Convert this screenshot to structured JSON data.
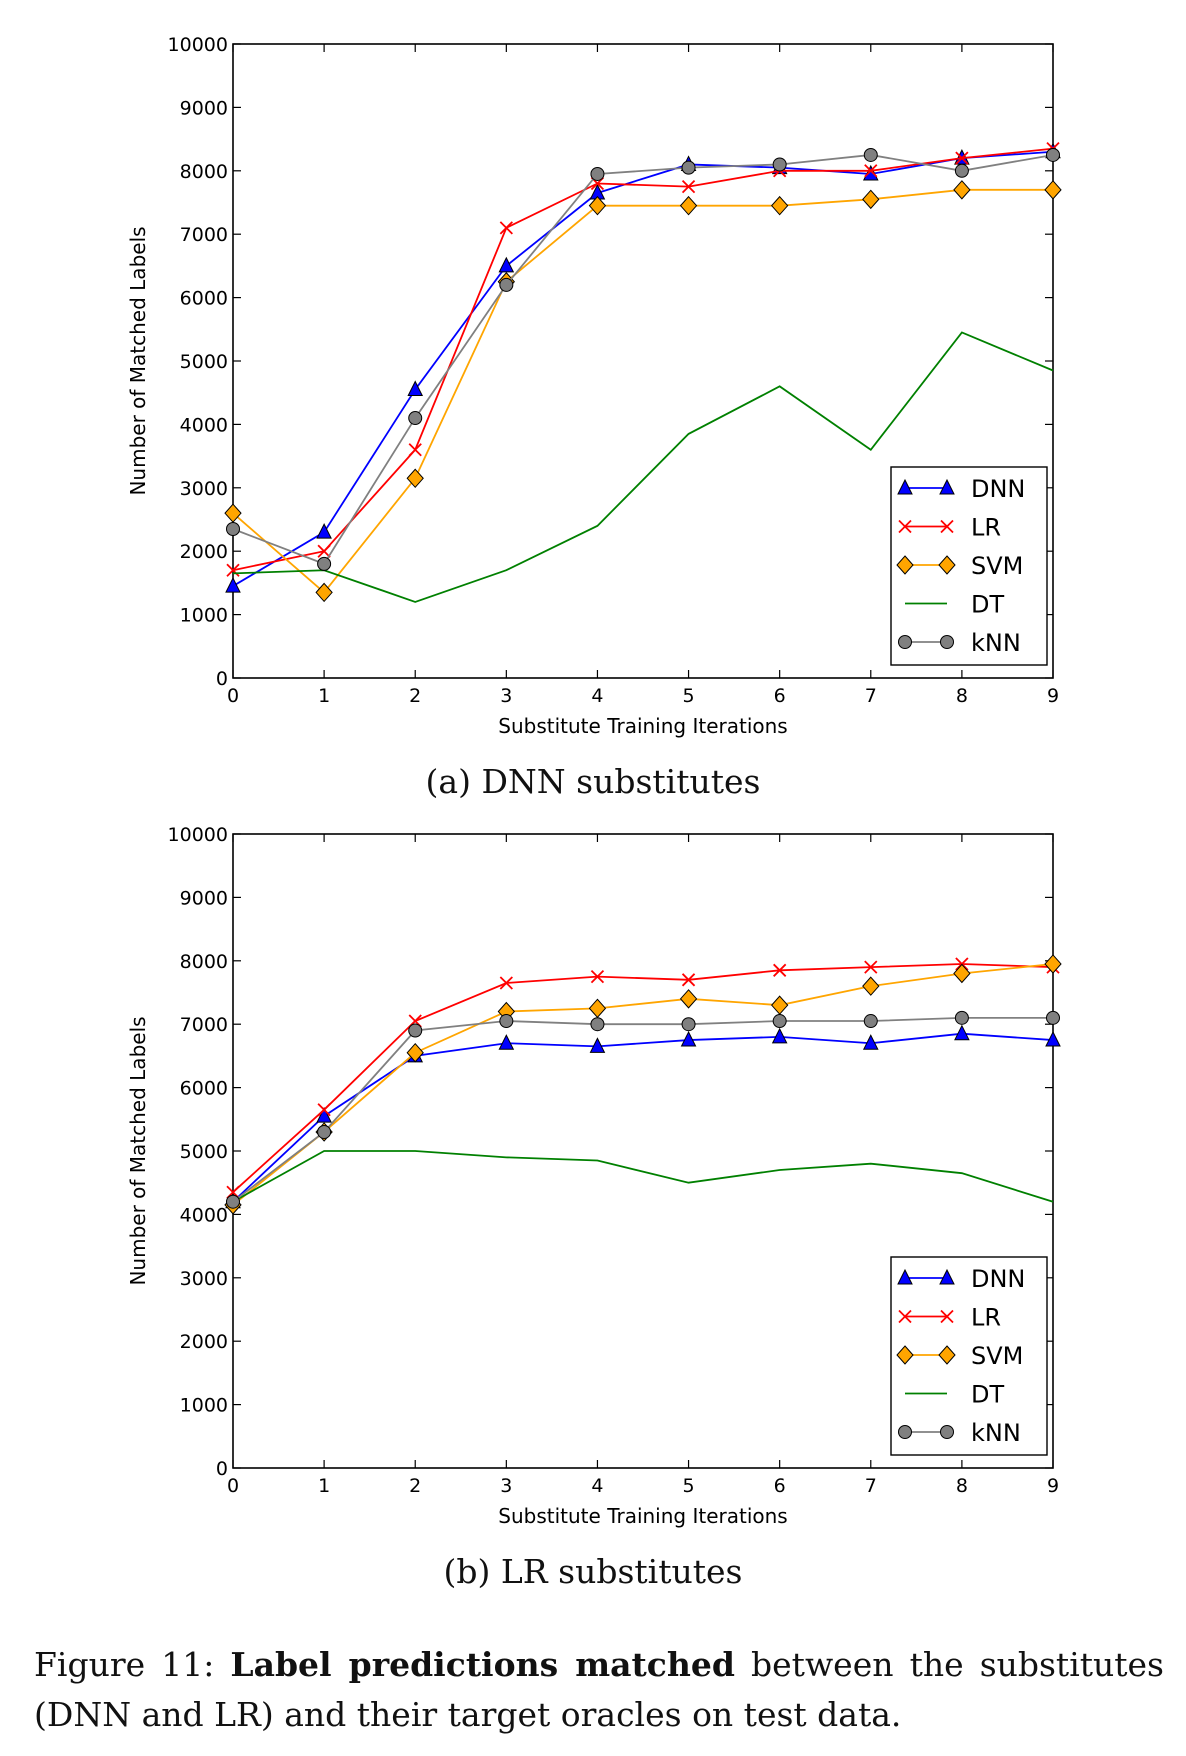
{
  "charts": [
    {
      "caption": "(a) DNN substitutes",
      "chart_data": {
        "type": "line",
        "xlabel": "Substitute Training Iterations",
        "ylabel": "Number of Matched Labels",
        "xlim": [
          0,
          9
        ],
        "ylim": [
          0,
          10000
        ],
        "x_ticks": [
          "0",
          "1",
          "2",
          "3",
          "4",
          "5",
          "6",
          "7",
          "8",
          "9"
        ],
        "y_ticks": [
          "0",
          "1000",
          "2000",
          "3000",
          "4000",
          "5000",
          "6000",
          "7000",
          "8000",
          "9000",
          "10000"
        ],
        "grid": false,
        "legend_position": "lower-right",
        "x": [
          0,
          1,
          2,
          3,
          4,
          5,
          6,
          7,
          8,
          9
        ],
        "series": [
          {
            "name": "DNN",
            "color": "#0000ff",
            "marker": "triangle",
            "values": [
              1450,
              2300,
              4550,
              6500,
              7650,
              8100,
              8050,
              7950,
              8200,
              8300
            ]
          },
          {
            "name": "LR",
            "color": "#ff0000",
            "marker": "x",
            "values": [
              1700,
              2000,
              3600,
              7100,
              7800,
              7750,
              8000,
              8000,
              8200,
              8350
            ]
          },
          {
            "name": "SVM",
            "color": "#ffa500",
            "marker": "diamond",
            "values": [
              2600,
              1350,
              3150,
              6250,
              7450,
              7450,
              7450,
              7550,
              7700,
              7700
            ]
          },
          {
            "name": "DT",
            "color": "#008000",
            "marker": "none",
            "values": [
              1650,
              1700,
              1200,
              1700,
              2400,
              3850,
              4600,
              3600,
              5450,
              4850
            ]
          },
          {
            "name": "kNN",
            "color": "#808080",
            "marker": "circle",
            "values": [
              2350,
              1800,
              4100,
              6200,
              7950,
              8050,
              8100,
              8250,
              8000,
              8250
            ]
          }
        ]
      }
    },
    {
      "caption": "(b) LR substitutes",
      "chart_data": {
        "type": "line",
        "xlabel": "Substitute Training Iterations",
        "ylabel": "Number of Matched Labels",
        "xlim": [
          0,
          9
        ],
        "ylim": [
          0,
          10000
        ],
        "x_ticks": [
          "0",
          "1",
          "2",
          "3",
          "4",
          "5",
          "6",
          "7",
          "8",
          "9"
        ],
        "y_ticks": [
          "0",
          "1000",
          "2000",
          "3000",
          "4000",
          "5000",
          "6000",
          "7000",
          "8000",
          "9000",
          "10000"
        ],
        "grid": false,
        "legend_position": "lower-right",
        "x": [
          0,
          1,
          2,
          3,
          4,
          5,
          6,
          7,
          8,
          9
        ],
        "series": [
          {
            "name": "DNN",
            "color": "#0000ff",
            "marker": "triangle",
            "values": [
              4200,
              5550,
              6500,
              6700,
              6650,
              6750,
              6800,
              6700,
              6850,
              6750
            ]
          },
          {
            "name": "LR",
            "color": "#ff0000",
            "marker": "x",
            "values": [
              4350,
              5650,
              7050,
              7650,
              7750,
              7700,
              7850,
              7900,
              7950,
              7900
            ]
          },
          {
            "name": "SVM",
            "color": "#ffa500",
            "marker": "diamond",
            "values": [
              4150,
              5300,
              6550,
              7200,
              7250,
              7400,
              7300,
              7600,
              7800,
              7950
            ]
          },
          {
            "name": "DT",
            "color": "#008000",
            "marker": "none",
            "values": [
              4200,
              5000,
              5000,
              4900,
              4850,
              4500,
              4700,
              4800,
              4650,
              4200
            ]
          },
          {
            "name": "kNN",
            "color": "#808080",
            "marker": "circle",
            "values": [
              4200,
              5300,
              6900,
              7050,
              7000,
              7000,
              7050,
              7050,
              7100,
              7100
            ]
          }
        ]
      }
    }
  ],
  "figure_caption": {
    "prefix": "Figure 11: ",
    "bold": "Label predictions matched",
    "rest": " between the substitutes (DNN and LR) and their target oracles on test data."
  }
}
